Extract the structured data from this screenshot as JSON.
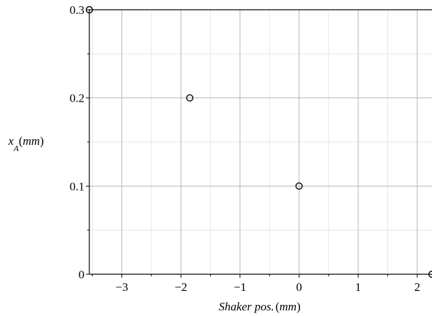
{
  "chart_data": {
    "type": "scatter",
    "title": "",
    "xlabel": {
      "main": "Shaker pos.",
      "unit": "mm"
    },
    "ylabel": {
      "var": "x",
      "sub": "A",
      "unit": "mm"
    },
    "xlim": [
      -3.55,
      2.25
    ],
    "ylim": [
      0,
      0.3
    ],
    "x_ticks": [
      -3,
      -2,
      -1,
      0,
      1,
      2
    ],
    "x_tick_labels": [
      "−3",
      "−2",
      "−1",
      "0",
      "1",
      "2"
    ],
    "y_ticks": [
      0,
      0.1,
      0.2,
      0.3
    ],
    "y_tick_labels": [
      "0",
      "0.1",
      "0.2",
      "0.3"
    ],
    "x_minor_grid": [
      -3.5,
      -2.5,
      -1.5,
      -0.5,
      0.5,
      1.5
    ],
    "y_minor_grid": [
      0.05,
      0.15,
      0.25
    ],
    "grid": true,
    "marker": "open-circle",
    "colors": {
      "grid_major": "#b4b4b4",
      "grid_minor": "#e6e6e6",
      "axis": "#000000",
      "marker": "#000000"
    },
    "series": [
      {
        "x": [
          -3.55,
          -1.85,
          0.0,
          2.25
        ],
        "y": [
          0.3,
          0.2,
          0.1,
          0.0
        ]
      }
    ]
  }
}
